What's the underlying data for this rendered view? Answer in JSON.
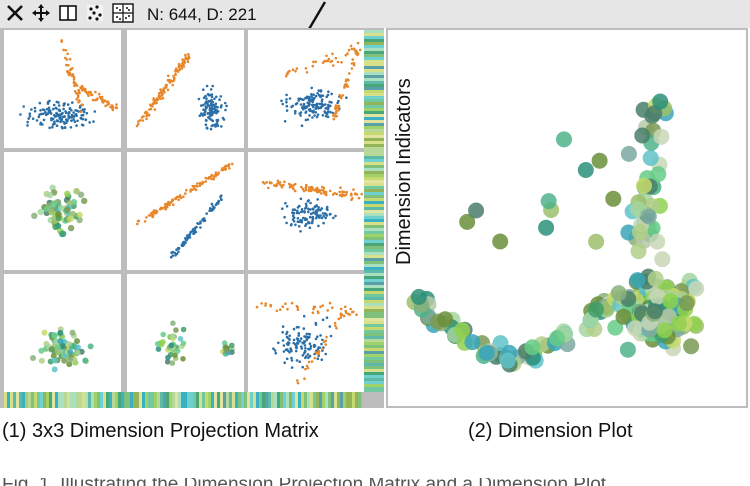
{
  "toolbar": {
    "tools": [
      "close-tool",
      "move-tool",
      "panel-tool",
      "scatter-tool",
      "grid-tool"
    ],
    "status": "N: 644, D: 221"
  },
  "matrix": {
    "rows": 3,
    "cols": 3,
    "caption": "(1) 3x3 Dimension Projection Matrix"
  },
  "dimplot": {
    "label": "Dimension Indicators",
    "caption": "(2) Dimension Plot"
  },
  "colors": {
    "blue": "#2a6fa8",
    "orange": "#e8872a",
    "grid": "#bdbdbd",
    "toolbar": "#e6e6e6"
  },
  "footer_text": "Fig. 1. Illustrating the Dimension Projection Matrix and a Dimension Plot"
}
